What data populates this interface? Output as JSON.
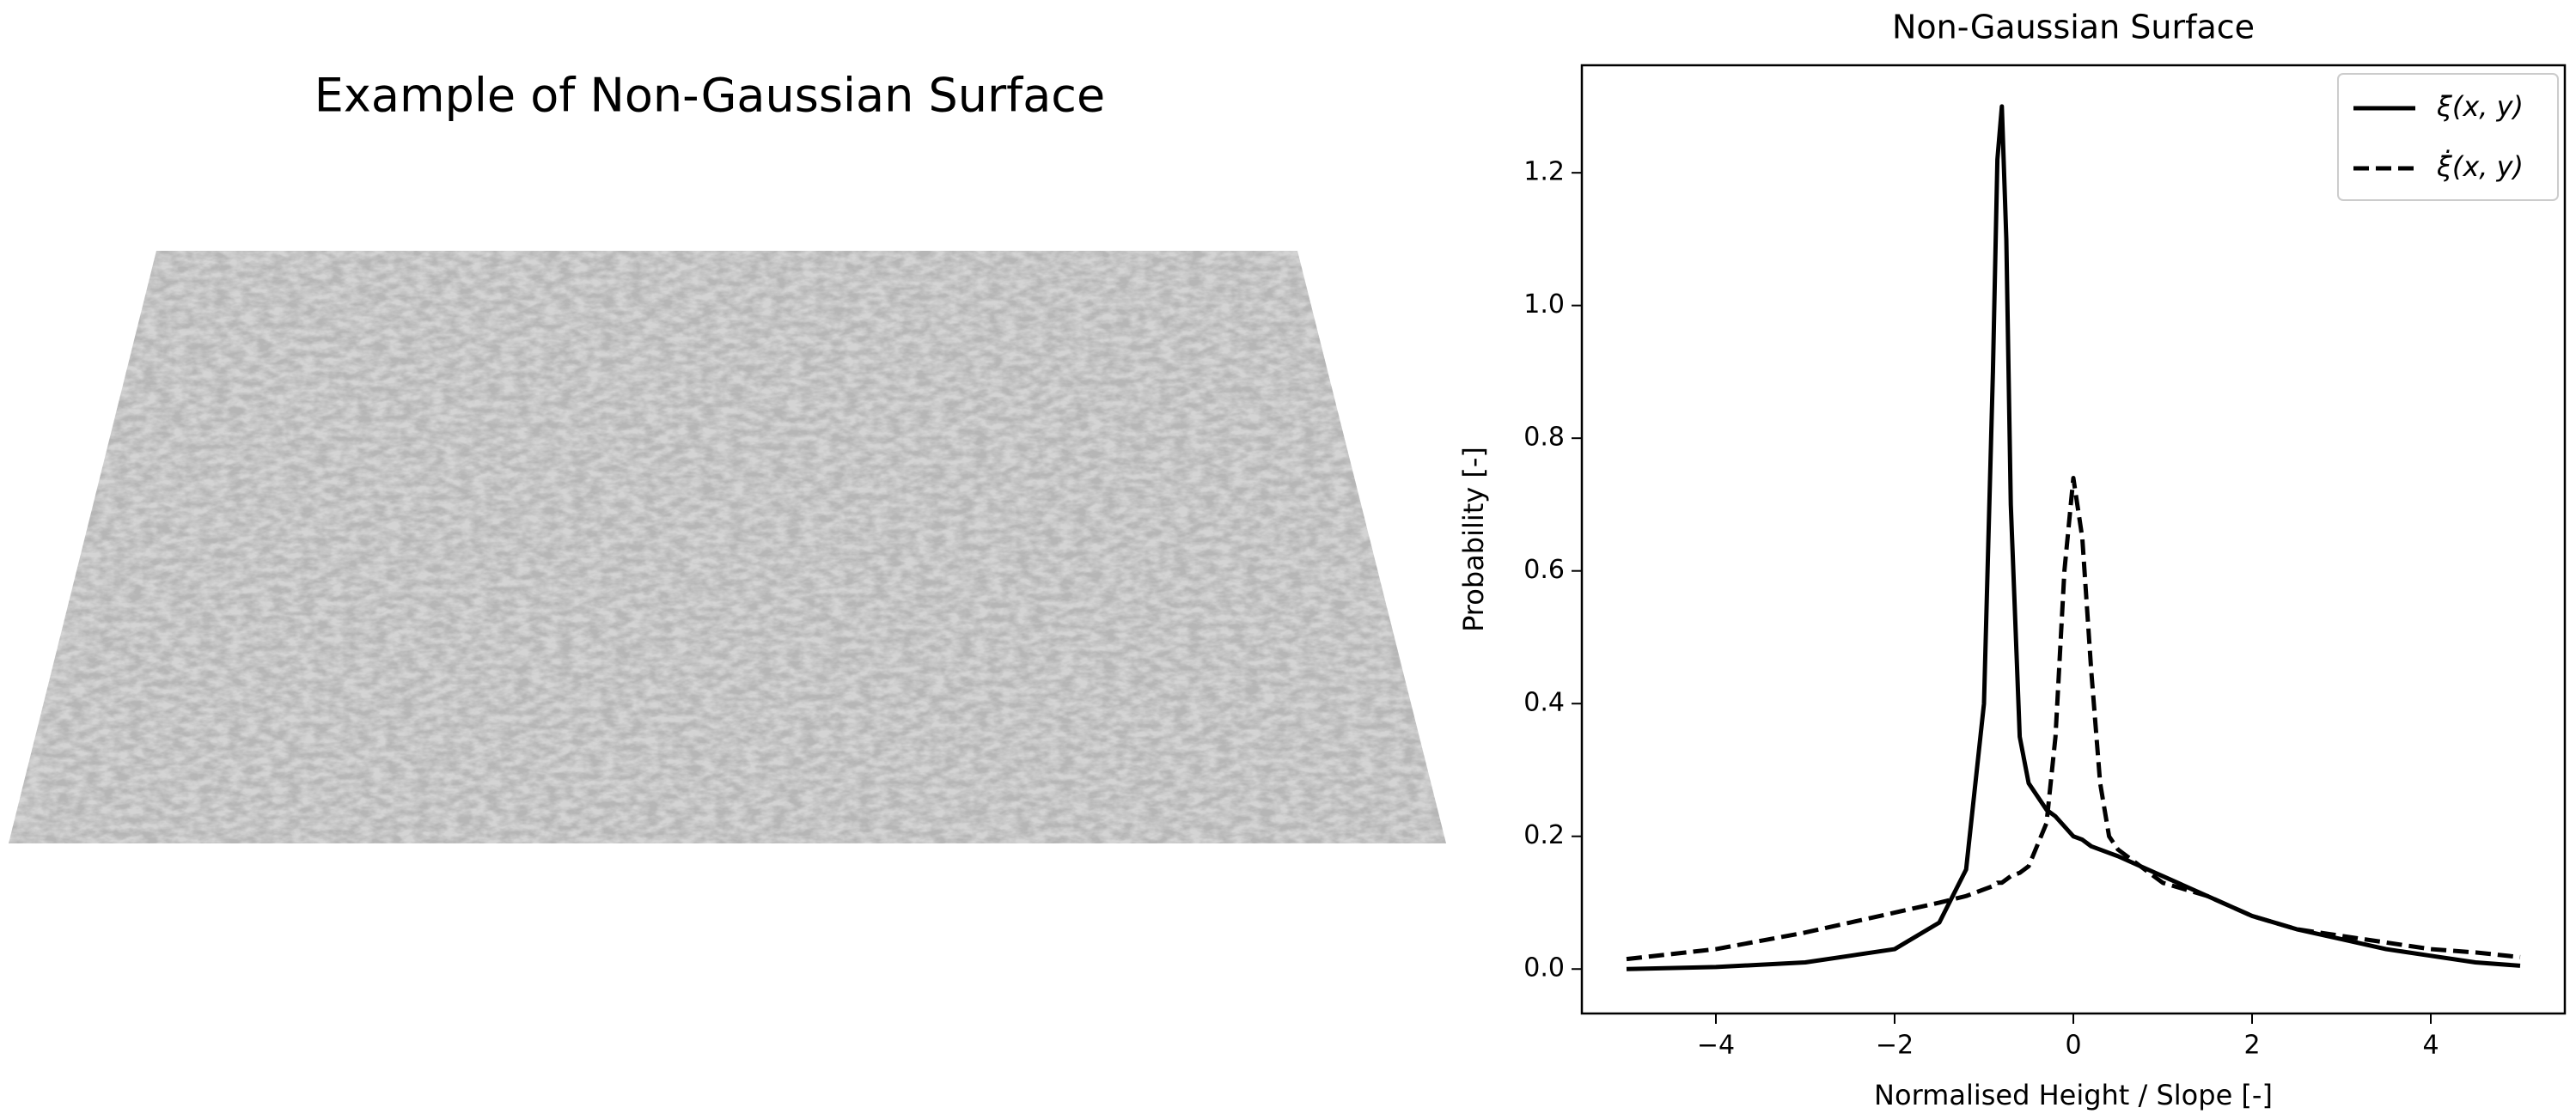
{
  "chart_data": [
    {
      "type": "surface",
      "title": "Example of Non-Gaussian Surface"
    },
    {
      "type": "line",
      "title": "Non-Gaussian Surface",
      "x_label": "Normalised Height / Slope [-]",
      "y_label": "Probability [-]",
      "x": [
        -5,
        -4,
        -3,
        -2.5,
        -2,
        -1.5,
        -1.2,
        -1.0,
        -0.9,
        -0.85,
        -0.8,
        -0.75,
        -0.7,
        -0.6,
        -0.5,
        -0.3,
        -0.2,
        -0.1,
        0,
        0.1,
        0.2,
        0.3,
        0.4,
        0.5,
        1,
        1.5,
        2,
        2.5,
        3,
        3.5,
        4,
        4.5,
        5
      ],
      "series": [
        {
          "name": "ξ(x, y)",
          "color": "#000000",
          "dash": false,
          "values": [
            0,
            0.003,
            0.01,
            0.02,
            0.03,
            0.07,
            0.15,
            0.4,
            0.9,
            1.22,
            1.3,
            1.1,
            0.7,
            0.35,
            0.28,
            0.24,
            0.23,
            0.215,
            0.2,
            0.195,
            0.185,
            0.18,
            0.175,
            0.17,
            0.14,
            0.11,
            0.08,
            0.06,
            0.045,
            0.03,
            0.02,
            0.01,
            0.005
          ]
        },
        {
          "name": "ξ̇(x, y)",
          "color": "#000000",
          "dash": true,
          "values": [
            0.015,
            0.03,
            0.055,
            0.07,
            0.085,
            0.1,
            0.11,
            0.12,
            0.125,
            0.13,
            0.13,
            0.135,
            0.14,
            0.145,
            0.155,
            0.22,
            0.35,
            0.6,
            0.74,
            0.65,
            0.45,
            0.28,
            0.2,
            0.18,
            0.13,
            0.11,
            0.08,
            0.06,
            0.05,
            0.04,
            0.03,
            0.025,
            0.018
          ]
        }
      ],
      "xlim": [
        -5.5,
        5.5
      ],
      "ylim": [
        -0.067,
        1.362
      ],
      "xticks": [
        {
          "value": -4,
          "label": "−4"
        },
        {
          "value": -2,
          "label": "−2"
        },
        0,
        2,
        4
      ],
      "yticks": [
        {
          "value": 0,
          "label": "0.0"
        },
        0.2,
        0.4,
        0.6,
        0.8,
        {
          "value": 1,
          "label": "1.0"
        },
        1.2
      ],
      "legend": "upper right",
      "grid": false
    }
  ]
}
